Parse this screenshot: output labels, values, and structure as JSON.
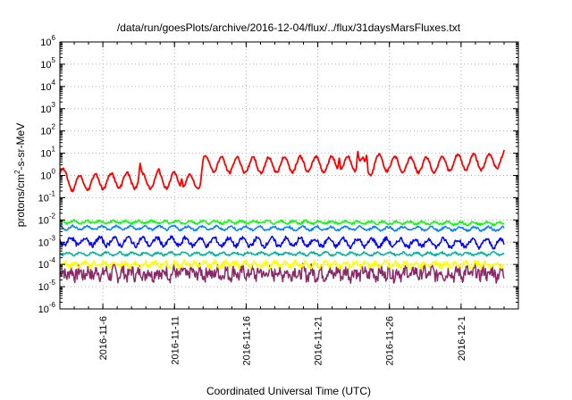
{
  "chart_data": {
    "type": "line",
    "title": "/data/run/goesPlots/archive/2016-12-04/flux/../flux/31daysMarsFluxes.txt",
    "xlabel": "Coordinated Universal Time (UTC)",
    "ylabel_base": "protons/cm",
    "ylabel_exp": "2",
    "ylabel_rest": "-s-sr-MeV",
    "y_scale": "log",
    "ylim": [
      1e-06,
      1000000.0
    ],
    "y_tick_base": "10",
    "y_tick_exponents": [
      "-6",
      "-5",
      "-4",
      "-3",
      "-2",
      "-1",
      "0",
      "1",
      "2",
      "3",
      "4",
      "5",
      "6"
    ],
    "xlim": [
      "2016-11-03",
      "2016-12-05"
    ],
    "x_ticks": [
      "2016-11-6",
      "2016-11-11",
      "2016-11-16",
      "2016-11-21",
      "2016-11-26",
      "2016-12-1"
    ],
    "x_tick_days": [
      3,
      8,
      13,
      18,
      23,
      28
    ],
    "grid": true,
    "legend": "none",
    "series": [
      {
        "color": "#ff0000",
        "base": [
          [
            0,
            1.2
          ],
          [
            1,
            0.4
          ],
          [
            2,
            0.5
          ],
          [
            3,
            0.55
          ],
          [
            4,
            0.6
          ],
          [
            5,
            0.6
          ],
          [
            6,
            0.55
          ],
          [
            7,
            0.6
          ],
          [
            8,
            0.6
          ],
          [
            9,
            0.5
          ],
          [
            9.8,
            0.6
          ],
          [
            10,
            3.5
          ],
          [
            10.5,
            3.5
          ],
          [
            11,
            3.0
          ],
          [
            12,
            3.0
          ],
          [
            14,
            2.8
          ],
          [
            16,
            3.2
          ],
          [
            18,
            3.2
          ],
          [
            20,
            3.2
          ],
          [
            21,
            3.5
          ],
          [
            21.5,
            1.5
          ],
          [
            22,
            4.0
          ],
          [
            24,
            3.0
          ],
          [
            26,
            3.0
          ],
          [
            28,
            4.0
          ],
          [
            30,
            4.0
          ],
          [
            31,
            6.0
          ]
        ],
        "amp": 0.35,
        "period": 1.1,
        "noise": 0.06,
        "spikes": [
          [
            5.6,
            3.5
          ],
          [
            6.9,
            2.0
          ],
          [
            8.5,
            0.7
          ],
          [
            19.5,
            6.0
          ],
          [
            20.8,
            12.0
          ],
          [
            21.4,
            8.0
          ]
        ]
      },
      {
        "color": "#00ff00",
        "base": [
          [
            0,
            0.008
          ],
          [
            15,
            0.008
          ],
          [
            31,
            0.007
          ]
        ],
        "amp": 0.06,
        "period": 0.9,
        "noise": 0.05,
        "spikes": []
      },
      {
        "color": "#0080ff",
        "base": [
          [
            0,
            0.0045
          ],
          [
            15,
            0.0042
          ],
          [
            31,
            0.004
          ]
        ],
        "amp": 0.08,
        "period": 1.0,
        "noise": 0.05,
        "spikes": []
      },
      {
        "color": "#0000ff",
        "base": [
          [
            0,
            0.0011
          ],
          [
            15,
            0.001
          ],
          [
            31,
            0.0009
          ]
        ],
        "amp": 0.18,
        "period": 1.0,
        "noise": 0.1,
        "spikes": []
      },
      {
        "color": "#00b3a0",
        "base": [
          [
            0,
            0.0003
          ],
          [
            31,
            0.0003
          ]
        ],
        "amp": 0.06,
        "period": 0.9,
        "noise": 0.05,
        "spikes": []
      },
      {
        "color": "#ffff00",
        "base": [
          [
            0,
            0.0001
          ],
          [
            31,
            0.0001
          ]
        ],
        "amp": 0.1,
        "period": 0.7,
        "noise": 0.12,
        "spikes": []
      },
      {
        "color": "#8b2a6a",
        "base": [
          [
            0,
            4e-05
          ],
          [
            31,
            4e-05
          ]
        ],
        "amp": 0.15,
        "period": 0.6,
        "noise": 0.3,
        "spikes": []
      }
    ]
  }
}
